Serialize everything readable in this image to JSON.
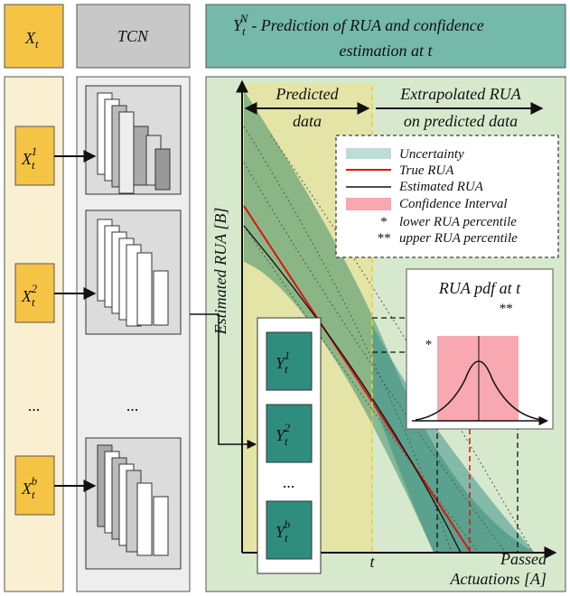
{
  "header": {
    "input_label": {
      "base": "X",
      "sub": "t"
    },
    "tcn_label": "TCN",
    "output_title": {
      "base": "Y",
      "sub": "t",
      "sup": "N",
      "lines": [
        "- Prediction of RUA and confidence",
        "estimation at t"
      ]
    }
  },
  "inputs": [
    {
      "base": "X",
      "sub": "t",
      "sup": "1"
    },
    {
      "base": "X",
      "sub": "t",
      "sup": "2"
    },
    {
      "base": "X",
      "sub": "t",
      "sup": "b"
    }
  ],
  "input_ellipsis": "...",
  "tcn_ellipsis": "...",
  "outputs": [
    {
      "base": "Y",
      "sub": "t",
      "sup": "1"
    },
    {
      "base": "Y",
      "sub": "t",
      "sup": "2"
    },
    {
      "base": "Y",
      "sub": "t",
      "sup": "b"
    }
  ],
  "output_ellipsis": "...",
  "chart": {
    "predicted_label": [
      "Predicted",
      "data"
    ],
    "extrapolated_label": [
      "Extrapolated RUA",
      "on predicted data"
    ],
    "y_axis_label": "Estimated RUA [B]",
    "x_axis_label": "Actuations [A]",
    "x_marker": "t",
    "x_end_label": "Passed",
    "legend": [
      {
        "label": "Uncertainty"
      },
      {
        "label": "True RUA"
      },
      {
        "label": "Estimated RUA"
      },
      {
        "label": "Confidence Interval"
      },
      {
        "symbol": "*",
        "label": "lower RUA percentile"
      },
      {
        "symbol": "**",
        "label": "upper RUA percentile"
      }
    ],
    "inset": {
      "title": "RUA pdf at t",
      "lower_marker": "*",
      "upper_marker": "**"
    }
  }
}
